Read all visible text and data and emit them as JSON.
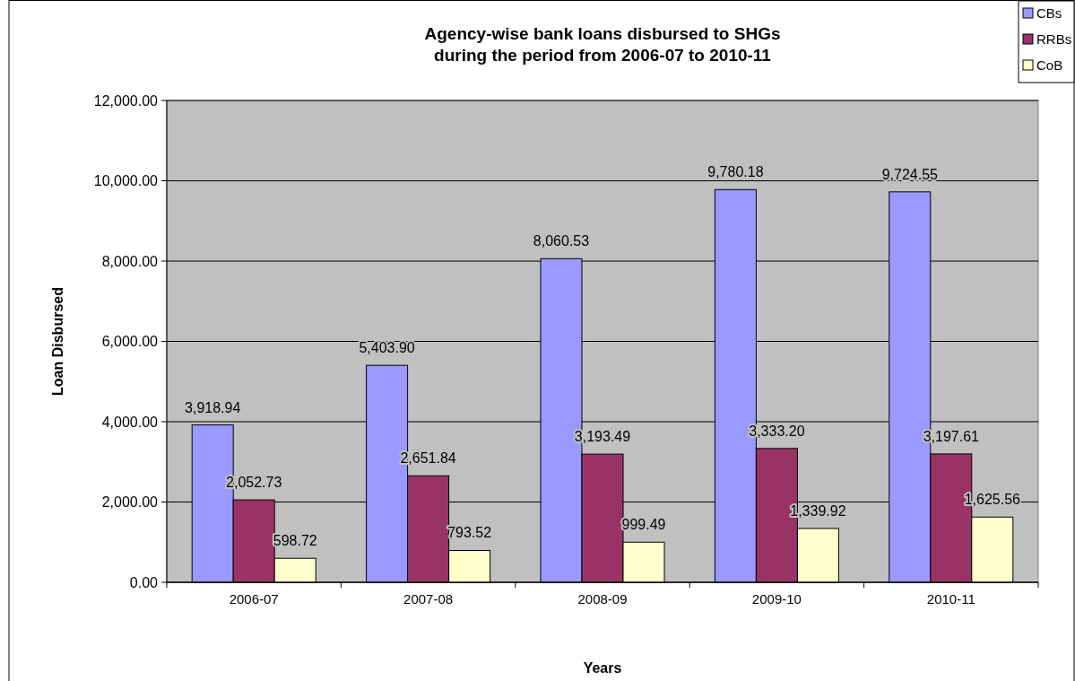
{
  "chart_data": {
    "type": "bar",
    "title": "Agency-wise bank loans disbursed to SHGs\nduring the period from 2006-07 to 2010-11",
    "xlabel": "Years",
    "ylabel": "Loan Disbursed",
    "categories": [
      "2006-07",
      "2007-08",
      "2008-09",
      "2009-10",
      "2010-11"
    ],
    "series": [
      {
        "name": "CBs",
        "color": "#9999ff",
        "values": [
          3918.94,
          5403.9,
          8060.53,
          9780.18,
          9724.55
        ],
        "value_labels": [
          "3,918.94",
          "5,403.90",
          "8,060.53",
          "9,780.18",
          "9,724.55"
        ]
      },
      {
        "name": "RRBs",
        "color": "#993366",
        "values": [
          2052.73,
          2651.84,
          3193.49,
          3333.2,
          3197.61
        ],
        "value_labels": [
          "2,052.73",
          "2,651.84",
          "3,193.49",
          "3,333.20",
          "3,197.61"
        ]
      },
      {
        "name": "CoB",
        "color": "#ffffcc",
        "values": [
          598.72,
          793.52,
          999.49,
          1339.92,
          1625.56
        ],
        "value_labels": [
          "598.72",
          "793.52",
          "999.49",
          "1,339.92",
          "1,625.56"
        ]
      }
    ],
    "ylim": [
      0,
      12000
    ],
    "yticks": [
      {
        "value": 0,
        "label": "0.00"
      },
      {
        "value": 2000,
        "label": "2,000.00"
      },
      {
        "value": 4000,
        "label": "4,000.00"
      },
      {
        "value": 6000,
        "label": "6,000.00"
      },
      {
        "value": 8000,
        "label": "8,000.00"
      },
      {
        "value": 10000,
        "label": "10,000.00"
      },
      {
        "value": 12000,
        "label": "12,000.00"
      }
    ],
    "grid": "y",
    "legend": "top right"
  }
}
